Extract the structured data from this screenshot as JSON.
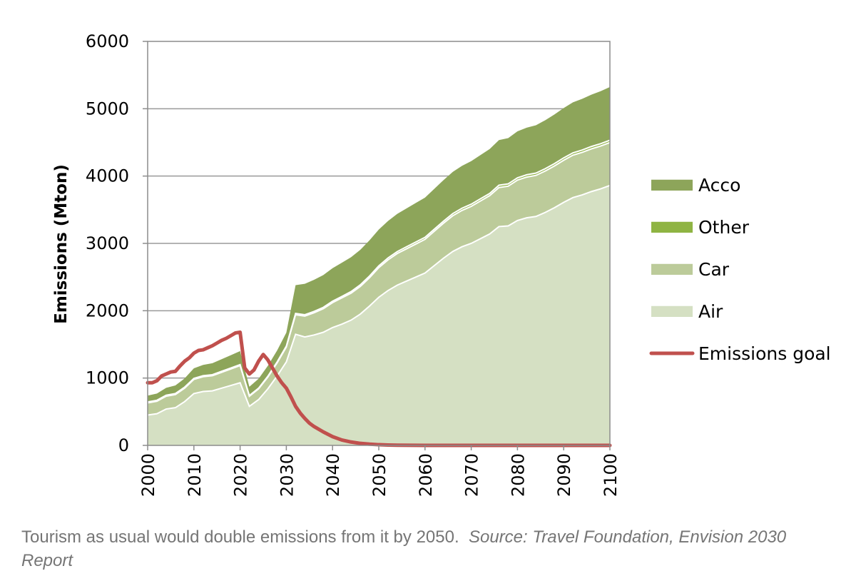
{
  "chart_data": {
    "type": "area",
    "title": "",
    "xlabel": "",
    "ylabel": "Emissions (Mton)",
    "xlim": [
      2000,
      2100
    ],
    "ylim": [
      0,
      6000
    ],
    "x_ticks": [
      "2000",
      "2010",
      "2020",
      "2030",
      "2040",
      "2050",
      "2060",
      "2070",
      "2080",
      "2090",
      "2100"
    ],
    "y_ticks": [
      "0",
      "1000",
      "2000",
      "3000",
      "4000",
      "5000",
      "6000"
    ],
    "grid": "horizontal",
    "stacked": true,
    "legend_position": "right",
    "x": [
      2000,
      2002,
      2004,
      2006,
      2008,
      2010,
      2012,
      2014,
      2016,
      2018,
      2020,
      2022,
      2024,
      2026,
      2028,
      2030,
      2032,
      2034,
      2036,
      2038,
      2040,
      2042,
      2044,
      2046,
      2048,
      2050,
      2052,
      2054,
      2056,
      2058,
      2060,
      2062,
      2064,
      2066,
      2068,
      2070,
      2072,
      2074,
      2076,
      2078,
      2080,
      2082,
      2084,
      2086,
      2088,
      2090,
      2092,
      2094,
      2096,
      2098,
      2100
    ],
    "series": [
      {
        "name": "Air",
        "color": "#d5e0c3",
        "values": [
          450,
          470,
          540,
          560,
          650,
          770,
          800,
          810,
          850,
          890,
          930,
          580,
          680,
          840,
          1030,
          1240,
          1650,
          1610,
          1640,
          1680,
          1750,
          1800,
          1860,
          1950,
          2070,
          2200,
          2300,
          2380,
          2440,
          2500,
          2560,
          2670,
          2780,
          2880,
          2950,
          3000,
          3070,
          3140,
          3250,
          3260,
          3340,
          3380,
          3400,
          3460,
          3530,
          3610,
          3680,
          3720,
          3770,
          3810,
          3860
        ]
      },
      {
        "name": "Car",
        "color": "#bccb9a",
        "values": [
          180,
          185,
          190,
          195,
          200,
          210,
          220,
          225,
          235,
          245,
          255,
          150,
          160,
          175,
          195,
          220,
          290,
          310,
          330,
          350,
          370,
          390,
          400,
          410,
          420,
          440,
          455,
          470,
          480,
          490,
          500,
          510,
          520,
          530,
          540,
          550,
          560,
          570,
          580,
          590,
          600,
          605,
          610,
          615,
          620,
          625,
          630,
          632,
          634,
          636,
          638
        ]
      },
      {
        "name": "Other",
        "color": "#8fb443",
        "values": [
          15,
          15,
          15,
          15,
          15,
          15,
          15,
          15,
          15,
          15,
          15,
          10,
          10,
          12,
          14,
          15,
          20,
          20,
          20,
          20,
          22,
          22,
          24,
          24,
          26,
          26,
          28,
          28,
          30,
          30,
          30,
          30,
          30,
          32,
          32,
          32,
          32,
          32,
          34,
          34,
          34,
          34,
          34,
          34,
          35,
          35,
          35,
          35,
          35,
          35,
          35
        ]
      },
      {
        "name": "Acco",
        "color": "#8da55a",
        "values": [
          95,
          100,
          110,
          120,
          130,
          150,
          160,
          170,
          180,
          190,
          200,
          130,
          140,
          155,
          170,
          200,
          420,
          460,
          470,
          480,
          490,
          500,
          510,
          520,
          530,
          540,
          550,
          560,
          570,
          580,
          590,
          600,
          610,
          620,
          630,
          640,
          650,
          660,
          670,
          680,
          690,
          700,
          710,
          720,
          730,
          740,
          750,
          760,
          770,
          780,
          790
        ]
      }
    ],
    "lines": [
      {
        "name": "Emissions goal",
        "color": "#c0504d",
        "x": [
          2000,
          2001,
          2002,
          2003,
          2004,
          2005,
          2006,
          2007,
          2008,
          2009,
          2010,
          2011,
          2012,
          2013,
          2014,
          2015,
          2016,
          2017,
          2018,
          2019,
          2020,
          2021,
          2022,
          2023,
          2024,
          2025,
          2026,
          2027,
          2028,
          2029,
          2030,
          2031,
          2032,
          2033,
          2034,
          2035,
          2036,
          2038,
          2040,
          2042,
          2044,
          2046,
          2048,
          2050,
          2052,
          2054,
          2060,
          2070,
          2080,
          2090,
          2100
        ],
        "values": [
          930,
          930,
          960,
          1030,
          1060,
          1090,
          1100,
          1180,
          1250,
          1300,
          1370,
          1410,
          1420,
          1450,
          1480,
          1520,
          1560,
          1590,
          1630,
          1670,
          1680,
          1150,
          1060,
          1120,
          1250,
          1350,
          1270,
          1150,
          1030,
          930,
          850,
          720,
          580,
          480,
          400,
          330,
          280,
          200,
          130,
          80,
          50,
          30,
          18,
          10,
          5,
          2,
          0,
          0,
          0,
          0,
          0
        ]
      }
    ]
  },
  "caption": {
    "text": "Tourism as usual would double emissions from it by 2050.",
    "source": "Source: Travel Foundation, Envision 2030 Report"
  }
}
